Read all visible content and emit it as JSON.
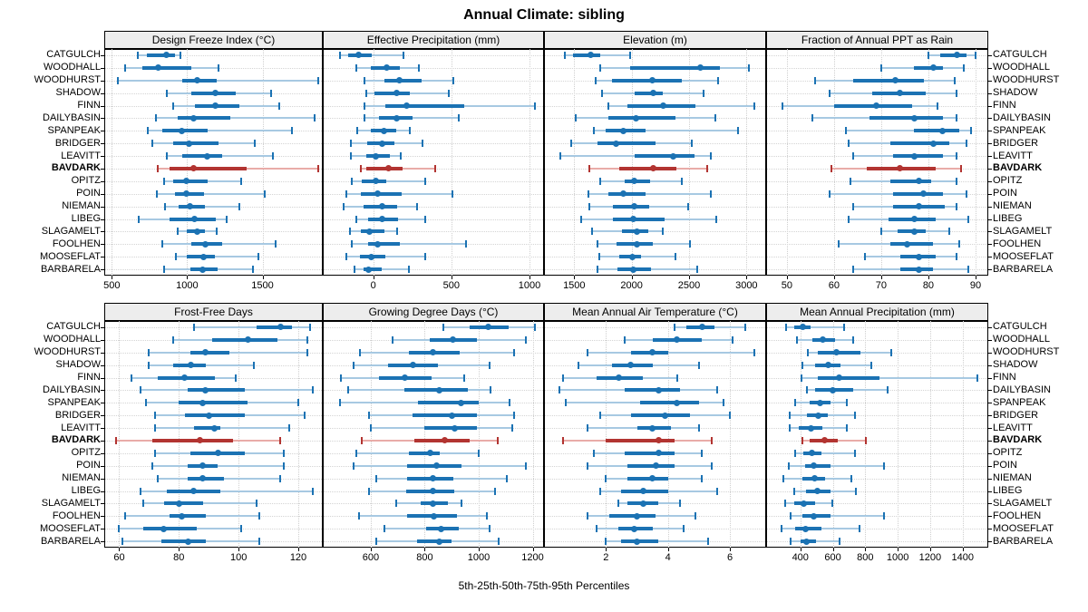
{
  "title": "Annual Climate: sibling",
  "footer": "5th-25th-50th-75th-95th Percentiles",
  "palette": {
    "blue": "#1b72b3",
    "blue_light": "#a7c9e2",
    "red": "#b23431",
    "red_light": "#e9aca8",
    "grid": "#cfcfcf",
    "strip_bg": "#ededed",
    "panel_border": "#000000",
    "text": "#000000"
  },
  "sites": [
    "CATGULCH",
    "WOODHALL",
    "WOODHURST",
    "SHADOW",
    "FINN",
    "DAILYBASIN",
    "SPANPEAK",
    "BRIDGER",
    "LEAVITT",
    "BAVDARK",
    "OPITZ",
    "POIN",
    "NIEMAN",
    "LIBEG",
    "SLAGAMELT",
    "FOOLHEN",
    "MOOSEFLAT",
    "BARBARELA"
  ],
  "highlight_site": "BAVDARK",
  "chart_data": {
    "type": "dotplot-percentiles",
    "title": "Annual Climate: sibling",
    "xlabel": "5th-25th-50th-75th-95th Percentiles",
    "percentiles": [
      "5th",
      "25th",
      "50th",
      "75th",
      "95th"
    ],
    "legend_position": "none",
    "grid": "dotted",
    "panels": [
      {
        "label": "Design Freeze Index (°C)",
        "slug": "design-freeze-index",
        "row": 0,
        "col": 0,
        "xlim": [
          450,
          1900
        ],
        "ticks": [
          500,
          1000,
          1500
        ],
        "values": [
          [
            670,
            735,
            865,
            920,
            955
          ],
          [
            590,
            705,
            805,
            1030,
            1210
          ],
          [
            540,
            970,
            1065,
            1195,
            1870
          ],
          [
            865,
            1030,
            1190,
            1325,
            1560
          ],
          [
            905,
            1050,
            1190,
            1345,
            1610
          ],
          [
            795,
            935,
            1045,
            1285,
            1845
          ],
          [
            740,
            835,
            965,
            1135,
            1695
          ],
          [
            770,
            910,
            1010,
            1210,
            1450
          ],
          [
            865,
            965,
            1135,
            1235,
            1570
          ],
          [
            805,
            885,
            1040,
            1395,
            1870
          ],
          [
            850,
            910,
            995,
            1135,
            1360
          ],
          [
            800,
            920,
            995,
            1110,
            1515
          ],
          [
            855,
            945,
            1020,
            1120,
            1345
          ],
          [
            680,
            885,
            1050,
            1190,
            1265
          ],
          [
            935,
            1000,
            1065,
            1120,
            1195
          ],
          [
            835,
            1030,
            1120,
            1230,
            1585
          ],
          [
            925,
            1000,
            1110,
            1185,
            1475
          ],
          [
            845,
            1020,
            1100,
            1205,
            1435
          ]
        ]
      },
      {
        "label": "Effective Precipitation (mm)",
        "slug": "effective-precipitation",
        "row": 0,
        "col": 1,
        "xlim": [
          -323,
          1093
        ],
        "ticks": [
          0,
          500,
          1000
        ],
        "values": [
          [
            -210,
            -160,
            -95,
            -10,
            195
          ],
          [
            -110,
            -15,
            85,
            170,
            295
          ],
          [
            -55,
            70,
            170,
            310,
            510
          ],
          [
            -45,
            10,
            150,
            235,
            485
          ],
          [
            -55,
            80,
            215,
            580,
            1035
          ],
          [
            -55,
            35,
            150,
            250,
            550
          ],
          [
            -100,
            -15,
            70,
            145,
            235
          ],
          [
            -145,
            -40,
            55,
            135,
            315
          ],
          [
            -145,
            -45,
            15,
            105,
            175
          ],
          [
            -80,
            -45,
            95,
            190,
            395
          ],
          [
            -135,
            -75,
            15,
            85,
            330
          ],
          [
            -175,
            -80,
            30,
            180,
            505
          ],
          [
            -190,
            -60,
            55,
            155,
            280
          ],
          [
            -110,
            -30,
            60,
            160,
            330
          ],
          [
            -150,
            -80,
            -25,
            70,
            155
          ],
          [
            -140,
            -35,
            30,
            170,
            595
          ],
          [
            -170,
            -85,
            -15,
            80,
            335
          ],
          [
            -120,
            -60,
            -30,
            55,
            230
          ]
        ]
      },
      {
        "label": "Elevation (m)",
        "slug": "elevation",
        "row": 0,
        "col": 2,
        "xlim": [
          1237,
          3171
        ],
        "ticks": [
          1500,
          2000,
          2500,
          3000
        ],
        "values": [
          [
            1420,
            1490,
            1640,
            1725,
            1990
          ],
          [
            1730,
            1990,
            2600,
            2765,
            3020
          ],
          [
            1690,
            1830,
            2180,
            2435,
            2750
          ],
          [
            1740,
            2025,
            2190,
            2270,
            2625
          ],
          [
            1795,
            1960,
            2275,
            2555,
            3065
          ],
          [
            1515,
            1795,
            2040,
            2380,
            2730
          ],
          [
            1670,
            1775,
            1925,
            2125,
            2925
          ],
          [
            1470,
            1705,
            1865,
            2210,
            2520
          ],
          [
            1380,
            2025,
            2360,
            2550,
            2690
          ],
          [
            1635,
            1890,
            2190,
            2390,
            2655
          ],
          [
            1725,
            1940,
            2020,
            2160,
            2440
          ],
          [
            1620,
            1800,
            1925,
            2125,
            2690
          ],
          [
            1635,
            1840,
            2020,
            2150,
            2495
          ],
          [
            1560,
            1835,
            2015,
            2285,
            2740
          ],
          [
            1655,
            1915,
            2045,
            2145,
            2275
          ],
          [
            1705,
            1865,
            2050,
            2185,
            2505
          ],
          [
            1715,
            1890,
            2005,
            2085,
            2380
          ],
          [
            1705,
            1880,
            2015,
            2170,
            2575
          ]
        ]
      },
      {
        "label": "Fraction of Annual PPT as Rain",
        "slug": "fraction-ppt-rain",
        "row": 0,
        "col": 3,
        "xlim": [
          45.6,
          92.7
        ],
        "ticks": [
          50,
          60,
          70,
          80,
          90
        ],
        "values": [
          [
            80,
            82.5,
            86,
            88,
            90
          ],
          [
            70,
            77,
            81,
            83,
            87.5
          ],
          [
            56,
            64,
            73,
            79,
            85.5
          ],
          [
            59,
            68,
            74,
            79.5,
            86
          ],
          [
            49,
            60,
            69,
            76.5,
            82
          ],
          [
            55.5,
            67.5,
            77,
            83,
            86
          ],
          [
            62.5,
            77,
            83,
            86.5,
            89
          ],
          [
            63,
            72,
            81,
            84.5,
            88
          ],
          [
            64,
            72.5,
            77,
            83,
            86
          ],
          [
            59.5,
            67,
            74,
            81.5,
            87
          ],
          [
            63.5,
            72,
            78,
            80.5,
            86
          ],
          [
            59,
            72.5,
            79,
            83,
            88
          ],
          [
            64,
            72.5,
            78,
            83.5,
            86
          ],
          [
            63,
            71.5,
            77,
            81.5,
            88.5
          ],
          [
            70,
            73.5,
            77,
            79.5,
            84.5
          ],
          [
            61,
            72,
            75.5,
            81,
            86.5
          ],
          [
            66.5,
            74,
            78,
            81.5,
            86
          ],
          [
            64,
            74,
            78,
            81,
            88.5
          ]
        ]
      },
      {
        "label": "Frost-Free Days",
        "slug": "frost-free-days",
        "row": 1,
        "col": 0,
        "xlim": [
          55,
          128.2
        ],
        "ticks": [
          60,
          80,
          100,
          120
        ],
        "values": [
          [
            85,
            106,
            114,
            118,
            124
          ],
          [
            78,
            91,
            103,
            113,
            123
          ],
          [
            70,
            84,
            89,
            97,
            123
          ],
          [
            70,
            78,
            84,
            89,
            105
          ],
          [
            64,
            73,
            82,
            92,
            99
          ],
          [
            67,
            83,
            89,
            102,
            125
          ],
          [
            69,
            80,
            88,
            103,
            120
          ],
          [
            72,
            82,
            90,
            102,
            122
          ],
          [
            72,
            85,
            92,
            94,
            117
          ],
          [
            59,
            71,
            87,
            98,
            114
          ],
          [
            72,
            84,
            93,
            102,
            115
          ],
          [
            71,
            83,
            88,
            93,
            115
          ],
          [
            73,
            83,
            88,
            95,
            114
          ],
          [
            67,
            76,
            85,
            94,
            125
          ],
          [
            68,
            75,
            80,
            88,
            106
          ],
          [
            62,
            77,
            81,
            89,
            107
          ],
          [
            60,
            68,
            75,
            86,
            101
          ],
          [
            61,
            74,
            83,
            89,
            107
          ]
        ]
      },
      {
        "label": "Growing Degree Days (°C)",
        "slug": "growing-degree-days",
        "row": 1,
        "col": 1,
        "xlim": [
          422,
          1242
        ],
        "ticks": [
          600,
          800,
          1000,
          1200
        ],
        "values": [
          [
            870,
            965,
            1035,
            1110,
            1210
          ],
          [
            680,
            820,
            905,
            995,
            1175
          ],
          [
            560,
            740,
            830,
            930,
            1130
          ],
          [
            535,
            665,
            755,
            850,
            1040
          ],
          [
            490,
            630,
            725,
            825,
            945
          ],
          [
            515,
            725,
            855,
            960,
            1045
          ],
          [
            485,
            775,
            935,
            1000,
            1115
          ],
          [
            595,
            755,
            900,
            995,
            1130
          ],
          [
            600,
            800,
            910,
            995,
            1125
          ],
          [
            565,
            760,
            875,
            965,
            1070
          ],
          [
            545,
            740,
            820,
            855,
            1000
          ],
          [
            535,
            735,
            845,
            935,
            1175
          ],
          [
            620,
            735,
            830,
            905,
            1105
          ],
          [
            595,
            730,
            830,
            910,
            1060
          ],
          [
            695,
            785,
            830,
            885,
            935
          ],
          [
            555,
            735,
            835,
            920,
            1030
          ],
          [
            650,
            805,
            860,
            925,
            1040
          ],
          [
            620,
            770,
            855,
            900,
            1075
          ]
        ]
      },
      {
        "label": "Mean Annual Air Temperature (°C)",
        "slug": "mean-annual-air-temperature",
        "row": 1,
        "col": 2,
        "xlim": [
          0,
          7.17
        ],
        "ticks": [
          2,
          4,
          6
        ],
        "values": [
          [
            4.2,
            4.6,
            5.1,
            5.5,
            6.5
          ],
          [
            2.6,
            3.5,
            4.3,
            5.1,
            6.1
          ],
          [
            1.4,
            2.8,
            3.5,
            4.0,
            6.8
          ],
          [
            1.1,
            2.2,
            2.8,
            3.5,
            5.0
          ],
          [
            0.6,
            1.7,
            2.4,
            3.2,
            4.3
          ],
          [
            0.5,
            2.6,
            3.7,
            4.4,
            5.6
          ],
          [
            0.7,
            3.1,
            4.3,
            5.0,
            5.8
          ],
          [
            1.8,
            2.8,
            3.9,
            4.7,
            6.0
          ],
          [
            1.4,
            3.0,
            3.5,
            4.1,
            5.0
          ],
          [
            0.6,
            2.0,
            3.7,
            4.2,
            5.4
          ],
          [
            1.6,
            2.6,
            3.7,
            4.2,
            5.1
          ],
          [
            1.4,
            2.7,
            3.6,
            4.2,
            5.4
          ],
          [
            2.0,
            2.7,
            3.5,
            4.0,
            5.1
          ],
          [
            1.8,
            2.5,
            3.2,
            4.0,
            5.6
          ],
          [
            2.4,
            2.7,
            3.2,
            3.7,
            4.4
          ],
          [
            1.4,
            2.1,
            3.0,
            3.6,
            4.9
          ],
          [
            1.7,
            2.4,
            2.9,
            3.5,
            4.5
          ],
          [
            2.0,
            2.5,
            3.0,
            3.7,
            5.3
          ]
        ]
      },
      {
        "label": "Mean Annual Precipitation (mm)",
        "slug": "mean-annual-precipitation",
        "row": 1,
        "col": 3,
        "xlim": [
          189,
          1558
        ],
        "ticks": [
          400,
          600,
          800,
          1000,
          1200,
          1400
        ],
        "values": [
          [
            310,
            365,
            415,
            465,
            670
          ],
          [
            380,
            475,
            540,
            615,
            725
          ],
          [
            445,
            510,
            620,
            770,
            960
          ],
          [
            415,
            490,
            570,
            650,
            835
          ],
          [
            405,
            510,
            640,
            885,
            1490
          ],
          [
            440,
            490,
            600,
            725,
            935
          ],
          [
            370,
            460,
            520,
            585,
            685
          ],
          [
            335,
            440,
            510,
            570,
            735
          ],
          [
            335,
            390,
            465,
            535,
            685
          ],
          [
            410,
            460,
            550,
            630,
            805
          ],
          [
            370,
            420,
            470,
            530,
            735
          ],
          [
            330,
            430,
            485,
            585,
            915
          ],
          [
            295,
            410,
            490,
            550,
            715
          ],
          [
            360,
            435,
            505,
            585,
            740
          ],
          [
            305,
            360,
            420,
            490,
            595
          ],
          [
            340,
            415,
            485,
            585,
            915
          ],
          [
            285,
            370,
            430,
            530,
            765
          ],
          [
            340,
            400,
            435,
            495,
            640
          ]
        ]
      }
    ]
  }
}
